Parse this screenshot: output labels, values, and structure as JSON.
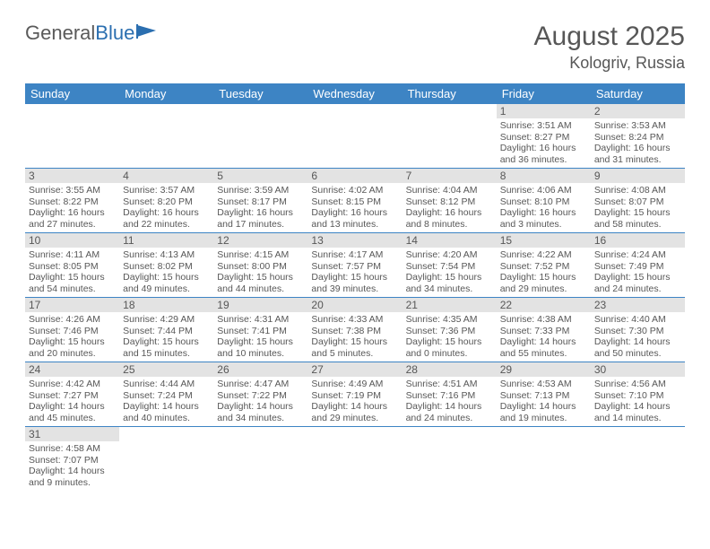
{
  "logo": {
    "text_a": "General",
    "text_b": "Blue"
  },
  "title": "August 2025",
  "location": "Kologriv, Russia",
  "header_color": "#3d84c4",
  "daynum_bg": "#e3e3e3",
  "text_color": "#575757",
  "day_names": [
    "Sunday",
    "Monday",
    "Tuesday",
    "Wednesday",
    "Thursday",
    "Friday",
    "Saturday"
  ],
  "weeks": [
    [
      {
        "n": "",
        "sr": "",
        "ss": "",
        "d1": "",
        "d2": ""
      },
      {
        "n": "",
        "sr": "",
        "ss": "",
        "d1": "",
        "d2": ""
      },
      {
        "n": "",
        "sr": "",
        "ss": "",
        "d1": "",
        "d2": ""
      },
      {
        "n": "",
        "sr": "",
        "ss": "",
        "d1": "",
        "d2": ""
      },
      {
        "n": "",
        "sr": "",
        "ss": "",
        "d1": "",
        "d2": ""
      },
      {
        "n": "1",
        "sr": "Sunrise: 3:51 AM",
        "ss": "Sunset: 8:27 PM",
        "d1": "Daylight: 16 hours",
        "d2": "and 36 minutes."
      },
      {
        "n": "2",
        "sr": "Sunrise: 3:53 AM",
        "ss": "Sunset: 8:24 PM",
        "d1": "Daylight: 16 hours",
        "d2": "and 31 minutes."
      }
    ],
    [
      {
        "n": "3",
        "sr": "Sunrise: 3:55 AM",
        "ss": "Sunset: 8:22 PM",
        "d1": "Daylight: 16 hours",
        "d2": "and 27 minutes."
      },
      {
        "n": "4",
        "sr": "Sunrise: 3:57 AM",
        "ss": "Sunset: 8:20 PM",
        "d1": "Daylight: 16 hours",
        "d2": "and 22 minutes."
      },
      {
        "n": "5",
        "sr": "Sunrise: 3:59 AM",
        "ss": "Sunset: 8:17 PM",
        "d1": "Daylight: 16 hours",
        "d2": "and 17 minutes."
      },
      {
        "n": "6",
        "sr": "Sunrise: 4:02 AM",
        "ss": "Sunset: 8:15 PM",
        "d1": "Daylight: 16 hours",
        "d2": "and 13 minutes."
      },
      {
        "n": "7",
        "sr": "Sunrise: 4:04 AM",
        "ss": "Sunset: 8:12 PM",
        "d1": "Daylight: 16 hours",
        "d2": "and 8 minutes."
      },
      {
        "n": "8",
        "sr": "Sunrise: 4:06 AM",
        "ss": "Sunset: 8:10 PM",
        "d1": "Daylight: 16 hours",
        "d2": "and 3 minutes."
      },
      {
        "n": "9",
        "sr": "Sunrise: 4:08 AM",
        "ss": "Sunset: 8:07 PM",
        "d1": "Daylight: 15 hours",
        "d2": "and 58 minutes."
      }
    ],
    [
      {
        "n": "10",
        "sr": "Sunrise: 4:11 AM",
        "ss": "Sunset: 8:05 PM",
        "d1": "Daylight: 15 hours",
        "d2": "and 54 minutes."
      },
      {
        "n": "11",
        "sr": "Sunrise: 4:13 AM",
        "ss": "Sunset: 8:02 PM",
        "d1": "Daylight: 15 hours",
        "d2": "and 49 minutes."
      },
      {
        "n": "12",
        "sr": "Sunrise: 4:15 AM",
        "ss": "Sunset: 8:00 PM",
        "d1": "Daylight: 15 hours",
        "d2": "and 44 minutes."
      },
      {
        "n": "13",
        "sr": "Sunrise: 4:17 AM",
        "ss": "Sunset: 7:57 PM",
        "d1": "Daylight: 15 hours",
        "d2": "and 39 minutes."
      },
      {
        "n": "14",
        "sr": "Sunrise: 4:20 AM",
        "ss": "Sunset: 7:54 PM",
        "d1": "Daylight: 15 hours",
        "d2": "and 34 minutes."
      },
      {
        "n": "15",
        "sr": "Sunrise: 4:22 AM",
        "ss": "Sunset: 7:52 PM",
        "d1": "Daylight: 15 hours",
        "d2": "and 29 minutes."
      },
      {
        "n": "16",
        "sr": "Sunrise: 4:24 AM",
        "ss": "Sunset: 7:49 PM",
        "d1": "Daylight: 15 hours",
        "d2": "and 24 minutes."
      }
    ],
    [
      {
        "n": "17",
        "sr": "Sunrise: 4:26 AM",
        "ss": "Sunset: 7:46 PM",
        "d1": "Daylight: 15 hours",
        "d2": "and 20 minutes."
      },
      {
        "n": "18",
        "sr": "Sunrise: 4:29 AM",
        "ss": "Sunset: 7:44 PM",
        "d1": "Daylight: 15 hours",
        "d2": "and 15 minutes."
      },
      {
        "n": "19",
        "sr": "Sunrise: 4:31 AM",
        "ss": "Sunset: 7:41 PM",
        "d1": "Daylight: 15 hours",
        "d2": "and 10 minutes."
      },
      {
        "n": "20",
        "sr": "Sunrise: 4:33 AM",
        "ss": "Sunset: 7:38 PM",
        "d1": "Daylight: 15 hours",
        "d2": "and 5 minutes."
      },
      {
        "n": "21",
        "sr": "Sunrise: 4:35 AM",
        "ss": "Sunset: 7:36 PM",
        "d1": "Daylight: 15 hours",
        "d2": "and 0 minutes."
      },
      {
        "n": "22",
        "sr": "Sunrise: 4:38 AM",
        "ss": "Sunset: 7:33 PM",
        "d1": "Daylight: 14 hours",
        "d2": "and 55 minutes."
      },
      {
        "n": "23",
        "sr": "Sunrise: 4:40 AM",
        "ss": "Sunset: 7:30 PM",
        "d1": "Daylight: 14 hours",
        "d2": "and 50 minutes."
      }
    ],
    [
      {
        "n": "24",
        "sr": "Sunrise: 4:42 AM",
        "ss": "Sunset: 7:27 PM",
        "d1": "Daylight: 14 hours",
        "d2": "and 45 minutes."
      },
      {
        "n": "25",
        "sr": "Sunrise: 4:44 AM",
        "ss": "Sunset: 7:24 PM",
        "d1": "Daylight: 14 hours",
        "d2": "and 40 minutes."
      },
      {
        "n": "26",
        "sr": "Sunrise: 4:47 AM",
        "ss": "Sunset: 7:22 PM",
        "d1": "Daylight: 14 hours",
        "d2": "and 34 minutes."
      },
      {
        "n": "27",
        "sr": "Sunrise: 4:49 AM",
        "ss": "Sunset: 7:19 PM",
        "d1": "Daylight: 14 hours",
        "d2": "and 29 minutes."
      },
      {
        "n": "28",
        "sr": "Sunrise: 4:51 AM",
        "ss": "Sunset: 7:16 PM",
        "d1": "Daylight: 14 hours",
        "d2": "and 24 minutes."
      },
      {
        "n": "29",
        "sr": "Sunrise: 4:53 AM",
        "ss": "Sunset: 7:13 PM",
        "d1": "Daylight: 14 hours",
        "d2": "and 19 minutes."
      },
      {
        "n": "30",
        "sr": "Sunrise: 4:56 AM",
        "ss": "Sunset: 7:10 PM",
        "d1": "Daylight: 14 hours",
        "d2": "and 14 minutes."
      }
    ],
    [
      {
        "n": "31",
        "sr": "Sunrise: 4:58 AM",
        "ss": "Sunset: 7:07 PM",
        "d1": "Daylight: 14 hours",
        "d2": "and 9 minutes."
      },
      {
        "n": "",
        "sr": "",
        "ss": "",
        "d1": "",
        "d2": ""
      },
      {
        "n": "",
        "sr": "",
        "ss": "",
        "d1": "",
        "d2": ""
      },
      {
        "n": "",
        "sr": "",
        "ss": "",
        "d1": "",
        "d2": ""
      },
      {
        "n": "",
        "sr": "",
        "ss": "",
        "d1": "",
        "d2": ""
      },
      {
        "n": "",
        "sr": "",
        "ss": "",
        "d1": "",
        "d2": ""
      },
      {
        "n": "",
        "sr": "",
        "ss": "",
        "d1": "",
        "d2": ""
      }
    ]
  ]
}
